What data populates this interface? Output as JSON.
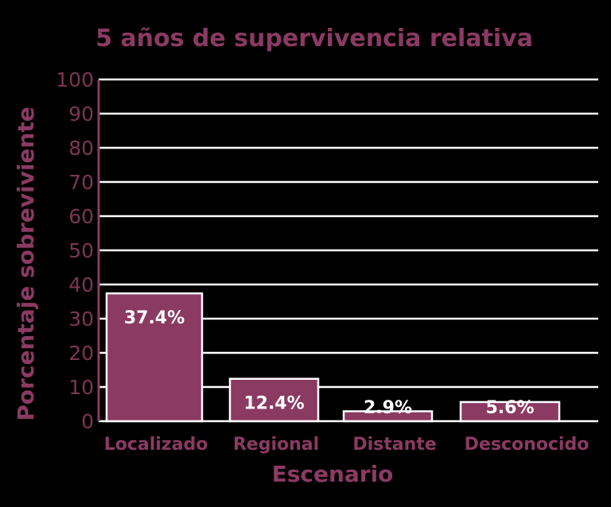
{
  "chart_data": {
    "type": "bar",
    "title": "5 años de supervivencia relativa",
    "xlabel": "Escenario",
    "ylabel": "Porcentaje sobreviviente",
    "categories": [
      "Localizado",
      "Regional",
      "Distante",
      "Desconocido"
    ],
    "values": [
      37.4,
      12.4,
      2.9,
      5.6
    ],
    "data_labels": [
      "37.4%",
      "12.4%",
      "2.9%",
      "5.6%"
    ],
    "ylim": [
      0,
      100
    ],
    "yticks": [
      "0",
      "10",
      "20",
      "30",
      "40",
      "50",
      "60",
      "70",
      "80",
      "90",
      "100"
    ],
    "grid": true,
    "legend": "none"
  },
  "colors": {
    "bar": "#8b3a62",
    "bar_border": "#ffffff",
    "text": "#8b3a62",
    "grid": "#ffffff",
    "background": "#000000"
  }
}
